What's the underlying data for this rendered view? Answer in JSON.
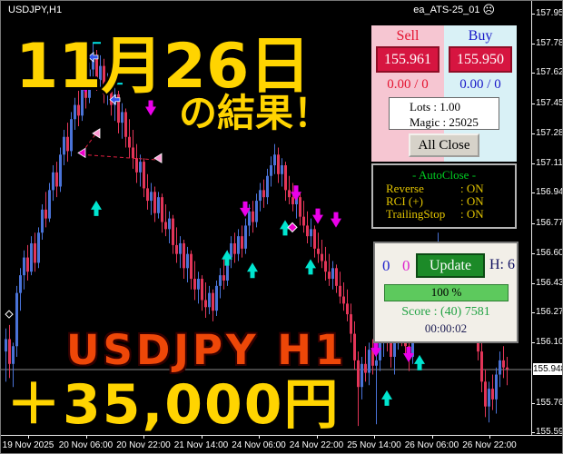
{
  "window": {
    "symbol_period": "USDJPY,H1",
    "ea_name": "ea_ATS-25_01",
    "ea_icon": "☹"
  },
  "overlay": {
    "headline_line1": "11月26日",
    "headline_line2": "の結果！",
    "symbol_watermark": "USDJPY H1",
    "profit": "＋35,000円"
  },
  "trade_panel": {
    "sell_label": "Sell",
    "buy_label": "Buy",
    "sell_price": "155.961",
    "buy_price": "155.950",
    "sell_stats": "0.00 / 0",
    "buy_stats": "0.00 / 0",
    "lots_line": "Lots   : 1.00",
    "magic_line": "Magic : 25025",
    "all_close_label": "All Close"
  },
  "autoclose_panel": {
    "title": "- AutoClose -",
    "rows": [
      {
        "name": "Reverse",
        "value": ": ON"
      },
      {
        "name": "RCI (+)",
        "value": ": ON"
      },
      {
        "name": "TrailingStop",
        "value": ": ON"
      }
    ]
  },
  "update_panel": {
    "count_blue": "0",
    "count_magenta": "0",
    "update_label": "Update",
    "hedge_label": "H: 6",
    "progress": "100 %",
    "score": "Score : (40) 7581",
    "timer": "00:00:02"
  },
  "chart_data": {
    "type": "candlestick",
    "title": "USDJPY H1",
    "symbol": "USDJPY",
    "timeframe": "H1",
    "current_price": "155.948",
    "grid": false,
    "legend": false,
    "colors": {
      "bull": "#4a73d8",
      "bear": "#e23558",
      "bid_line": "#8a8a8a",
      "up_arrow": "#00e5cf",
      "down_arrow": "#ea00ea",
      "zigzag": "#e02040",
      "tag_blue": "#3355ee",
      "flag_magenta": "#ee00cc",
      "flag_pink": "#ff9ad5"
    },
    "y_axis_labels": [
      "157.955",
      "157.785",
      "157.620",
      "157.450",
      "157.280",
      "157.110",
      "156.945",
      "156.775",
      "156.605",
      "156.435",
      "156.270",
      "156.100",
      "155.760",
      "155.595"
    ],
    "x_axis_labels": [
      "19 Nov 2025",
      "20 Nov 06:00",
      "20 Nov 22:00",
      "21 Nov 14:00",
      "24 Nov 06:00",
      "24 Nov 22:00",
      "25 Nov 14:00",
      "26 Nov 06:00",
      "26 Nov 22:00"
    ],
    "ylim": [
      155.595,
      157.955
    ],
    "candles": [
      [
        156.05,
        156.18,
        155.88,
        156.12
      ],
      [
        156.12,
        156.2,
        155.9,
        155.98
      ],
      [
        155.98,
        156.1,
        155.85,
        156.08
      ],
      [
        156.08,
        156.42,
        156.02,
        156.38
      ],
      [
        156.38,
        156.52,
        156.28,
        156.48
      ],
      [
        156.48,
        156.62,
        156.4,
        156.58
      ],
      [
        156.58,
        156.65,
        156.45,
        156.5
      ],
      [
        156.5,
        156.7,
        156.48,
        156.66
      ],
      [
        156.66,
        156.72,
        156.5,
        156.55
      ],
      [
        156.55,
        156.75,
        156.52,
        156.72
      ],
      [
        156.72,
        156.88,
        156.68,
        156.85
      ],
      [
        156.85,
        156.95,
        156.75,
        156.8
      ],
      [
        156.8,
        157.0,
        156.78,
        156.96
      ],
      [
        156.96,
        157.1,
        156.9,
        157.06
      ],
      [
        157.06,
        157.12,
        156.92,
        156.98
      ],
      [
        156.98,
        157.2,
        156.95,
        157.16
      ],
      [
        157.16,
        157.3,
        157.1,
        157.26
      ],
      [
        157.26,
        157.34,
        157.12,
        157.18
      ],
      [
        157.18,
        157.4,
        157.15,
        157.36
      ],
      [
        157.36,
        157.48,
        157.3,
        157.44
      ],
      [
        157.44,
        157.52,
        157.32,
        157.38
      ],
      [
        157.38,
        157.58,
        157.35,
        157.54
      ],
      [
        157.54,
        157.62,
        157.42,
        157.48
      ],
      [
        157.48,
        157.68,
        157.45,
        157.64
      ],
      [
        157.64,
        157.79,
        157.58,
        157.7
      ],
      [
        157.7,
        157.75,
        157.52,
        157.58
      ],
      [
        157.58,
        157.72,
        157.54,
        157.66
      ],
      [
        157.66,
        157.7,
        157.45,
        157.5
      ],
      [
        157.5,
        157.62,
        157.44,
        157.56
      ],
      [
        157.56,
        157.6,
        157.38,
        157.44
      ],
      [
        157.44,
        157.55,
        157.35,
        157.5
      ],
      [
        157.5,
        157.52,
        157.28,
        157.34
      ],
      [
        157.34,
        157.45,
        157.25,
        157.4
      ],
      [
        157.4,
        157.42,
        157.2,
        157.26
      ],
      [
        157.26,
        157.36,
        157.14,
        157.2
      ],
      [
        157.2,
        157.3,
        157.08,
        157.14
      ],
      [
        157.14,
        157.22,
        157.0,
        157.06
      ],
      [
        157.06,
        157.16,
        156.98,
        157.12
      ],
      [
        157.12,
        157.14,
        156.92,
        156.97
      ],
      [
        156.97,
        157.05,
        156.85,
        156.9
      ],
      [
        156.9,
        157.0,
        156.82,
        156.95
      ],
      [
        156.95,
        156.98,
        156.78,
        156.83
      ],
      [
        156.83,
        156.95,
        156.8,
        156.92
      ],
      [
        156.92,
        156.94,
        156.72,
        156.78
      ],
      [
        156.78,
        156.88,
        156.7,
        156.74
      ],
      [
        156.74,
        156.84,
        156.66,
        156.8
      ],
      [
        156.8,
        156.82,
        156.6,
        156.65
      ],
      [
        156.65,
        156.75,
        156.55,
        156.6
      ],
      [
        156.6,
        156.7,
        156.52,
        156.66
      ],
      [
        156.66,
        156.68,
        156.46,
        156.52
      ],
      [
        156.52,
        156.64,
        156.44,
        156.6
      ],
      [
        156.6,
        156.62,
        156.4,
        156.46
      ],
      [
        156.46,
        156.56,
        156.34,
        156.4
      ],
      [
        156.4,
        156.5,
        156.32,
        156.46
      ],
      [
        156.46,
        156.48,
        156.28,
        156.34
      ],
      [
        156.34,
        156.44,
        156.24,
        156.3
      ],
      [
        156.3,
        156.42,
        156.26,
        156.38
      ],
      [
        156.38,
        156.4,
        156.22,
        156.28
      ],
      [
        156.28,
        156.45,
        156.25,
        156.42
      ],
      [
        156.42,
        156.52,
        156.35,
        156.48
      ],
      [
        156.48,
        156.58,
        156.4,
        156.45
      ],
      [
        156.45,
        156.62,
        156.42,
        156.58
      ],
      [
        156.58,
        156.7,
        156.52,
        156.66
      ],
      [
        156.66,
        156.72,
        156.55,
        156.6
      ],
      [
        156.6,
        156.74,
        156.56,
        156.7
      ],
      [
        156.7,
        156.76,
        156.58,
        156.63
      ],
      [
        156.63,
        156.8,
        156.6,
        156.76
      ],
      [
        156.76,
        156.88,
        156.7,
        156.84
      ],
      [
        156.84,
        156.9,
        156.72,
        156.78
      ],
      [
        156.78,
        156.94,
        156.75,
        156.9
      ],
      [
        156.9,
        157.0,
        156.84,
        156.96
      ],
      [
        156.96,
        157.02,
        156.86,
        156.92
      ],
      [
        156.92,
        157.08,
        156.88,
        157.04
      ],
      [
        157.04,
        157.15,
        156.98,
        157.1
      ],
      [
        157.1,
        157.22,
        157.05,
        157.16
      ],
      [
        157.16,
        157.2,
        157.0,
        157.05
      ],
      [
        157.05,
        157.14,
        156.98,
        157.1
      ],
      [
        157.1,
        157.12,
        156.9,
        156.96
      ],
      [
        156.96,
        157.04,
        156.88,
        156.92
      ],
      [
        156.92,
        157.0,
        156.84,
        156.88
      ],
      [
        156.88,
        156.96,
        156.8,
        156.92
      ],
      [
        156.92,
        156.94,
        156.76,
        156.81
      ],
      [
        156.81,
        156.9,
        156.72,
        156.76
      ],
      [
        156.76,
        156.84,
        156.66,
        156.7
      ],
      [
        156.7,
        156.8,
        156.64,
        156.74
      ],
      [
        156.74,
        156.76,
        156.58,
        156.63
      ],
      [
        156.63,
        156.72,
        156.55,
        156.6
      ],
      [
        156.6,
        156.68,
        156.52,
        156.56
      ],
      [
        156.56,
        156.64,
        156.45,
        156.5
      ],
      [
        156.5,
        156.6,
        156.42,
        156.46
      ],
      [
        156.46,
        156.56,
        156.4,
        156.52
      ],
      [
        156.52,
        156.54,
        156.38,
        156.42
      ],
      [
        156.42,
        156.5,
        156.32,
        156.36
      ],
      [
        156.36,
        156.44,
        156.28,
        156.32
      ],
      [
        156.32,
        156.4,
        156.22,
        156.26
      ],
      [
        156.26,
        156.32,
        156.1,
        156.15
      ],
      [
        156.15,
        156.22,
        155.95,
        156.0
      ],
      [
        156.0,
        156.05,
        155.63,
        155.85
      ],
      [
        155.85,
        156.02,
        155.78,
        155.98
      ],
      [
        155.98,
        156.08,
        155.88,
        155.93
      ],
      [
        155.93,
        156.1,
        155.86,
        156.06
      ],
      [
        156.06,
        156.12,
        155.92,
        155.97
      ],
      [
        155.97,
        156.05,
        155.64,
        156.0
      ],
      [
        156.0,
        156.15,
        155.94,
        156.1
      ],
      [
        156.1,
        156.22,
        156.02,
        156.18
      ],
      [
        156.18,
        156.25,
        156.05,
        156.1
      ],
      [
        156.1,
        156.2,
        155.96,
        156.02
      ],
      [
        156.02,
        156.16,
        155.92,
        156.12
      ],
      [
        156.12,
        156.24,
        156.06,
        156.2
      ],
      [
        156.2,
        156.28,
        156.08,
        156.14
      ],
      [
        156.14,
        156.26,
        156.04,
        156.08
      ],
      [
        156.08,
        156.18,
        155.94,
        156.02
      ],
      [
        156.02,
        156.2,
        155.98,
        156.16
      ],
      [
        156.16,
        156.3,
        156.1,
        156.26
      ],
      [
        156.26,
        156.34,
        156.14,
        156.2
      ],
      [
        156.2,
        156.32,
        156.12,
        156.28
      ],
      [
        156.28,
        156.38,
        156.18,
        156.34
      ],
      [
        156.34,
        156.42,
        156.24,
        156.3
      ],
      [
        156.3,
        156.44,
        156.26,
        156.4
      ],
      [
        156.4,
        156.72,
        156.32,
        156.46
      ],
      [
        156.46,
        156.54,
        156.36,
        156.42
      ],
      [
        156.42,
        156.52,
        156.34,
        156.48
      ],
      [
        156.48,
        156.56,
        156.4,
        156.44
      ],
      [
        156.44,
        156.52,
        156.32,
        156.38
      ],
      [
        156.38,
        156.48,
        156.3,
        156.42
      ],
      [
        156.42,
        156.46,
        156.28,
        156.34
      ],
      [
        156.34,
        156.44,
        156.24,
        156.3
      ],
      [
        156.3,
        156.4,
        156.2,
        156.36
      ],
      [
        156.36,
        156.38,
        156.18,
        156.24
      ],
      [
        156.24,
        156.34,
        156.12,
        156.18
      ],
      [
        156.18,
        156.26,
        156.0,
        156.05
      ],
      [
        156.05,
        156.12,
        155.82,
        155.88
      ],
      [
        155.88,
        155.95,
        155.68,
        155.74
      ],
      [
        155.74,
        155.88,
        155.65,
        155.84
      ],
      [
        155.84,
        155.92,
        155.72,
        155.78
      ],
      [
        155.78,
        155.96,
        155.7,
        155.92
      ],
      [
        155.92,
        156.05,
        155.85,
        156.0
      ],
      [
        156.0,
        156.08,
        155.9,
        155.96
      ],
      [
        155.96,
        156.02,
        155.86,
        155.95
      ]
    ],
    "markers": {
      "arrows_up": [
        {
          "i": 25,
          "p": 156.86
        },
        {
          "i": 61,
          "p": 156.58
        },
        {
          "i": 68,
          "p": 156.51
        },
        {
          "i": 77,
          "p": 156.75
        },
        {
          "i": 84,
          "p": 156.53
        },
        {
          "i": 105,
          "p": 155.79
        },
        {
          "i": 114,
          "p": 155.99
        }
      ],
      "arrows_down": [
        {
          "i": 22,
          "p": 157.55
        },
        {
          "i": 40,
          "p": 157.42
        },
        {
          "i": 66,
          "p": 156.85
        },
        {
          "i": 80,
          "p": 156.94
        },
        {
          "i": 86,
          "p": 156.81
        },
        {
          "i": 91,
          "p": 156.79
        },
        {
          "i": 102,
          "p": 156.06
        },
        {
          "i": 111,
          "p": 156.03
        }
      ],
      "tags_blue": [
        {
          "i": 24,
          "p": 157.71
        },
        {
          "i": 30,
          "p": 157.47
        }
      ],
      "dashes_cyan": [
        {
          "i": 25,
          "p": 157.79
        },
        {
          "i": 31,
          "p": 157.56
        }
      ],
      "diamonds_white": [
        {
          "i": 1,
          "p": 156.26
        }
      ],
      "diamonds_magenta": [
        {
          "i": 79,
          "p": 156.75
        }
      ],
      "pivot_flags": [
        {
          "i": 21,
          "p": 157.17,
          "kind": "magenta"
        },
        {
          "i": 25,
          "p": 157.28,
          "kind": "pink"
        },
        {
          "i": 42,
          "p": 157.14,
          "kind": "pink"
        }
      ],
      "dashed_lines": [
        {
          "from": {
            "i": 21,
            "p": 157.17
          },
          "to": {
            "i": 25,
            "p": 157.28
          }
        },
        {
          "from": {
            "i": 21,
            "p": 157.16
          },
          "to": {
            "i": 42,
            "p": 157.13
          }
        }
      ]
    }
  }
}
